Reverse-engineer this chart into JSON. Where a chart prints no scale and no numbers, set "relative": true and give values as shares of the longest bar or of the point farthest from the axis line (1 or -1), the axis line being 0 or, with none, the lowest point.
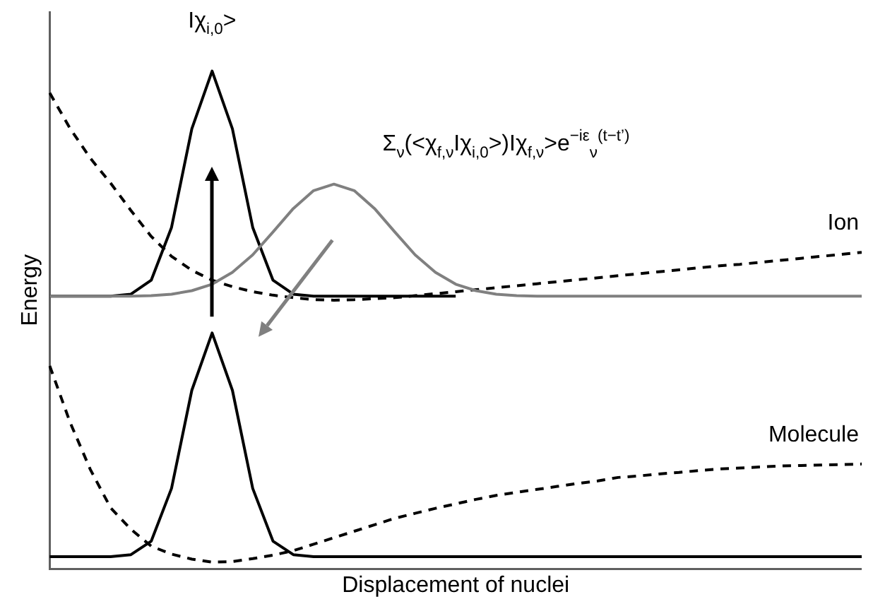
{
  "chart_data": {
    "type": "line",
    "relative": true,
    "xlabel": "Displacement of nuclei",
    "ylabel": "Energy",
    "legend": false,
    "marker": "none",
    "categories": [
      null,
      null,
      null,
      null,
      null,
      null,
      null,
      null,
      null,
      null,
      null,
      null,
      null,
      null,
      null,
      null,
      null,
      null,
      null,
      null,
      null,
      null,
      null,
      null,
      null,
      null,
      null,
      null,
      null,
      null,
      null,
      null,
      null,
      null,
      null,
      null,
      null,
      null,
      null,
      null,
      null
    ],
    "annotations": [
      "Iχ$_{i,0}$>",
      "Σ$_{ν}$(<χ$_{f,ν}$Iχ$_{i,0}$>)Iχ$_{f,ν}$>e$^{−iε}$$_{ν}$$^{(t−t’)}$"
    ],
    "series": [
      {
        "color": "#808080",
        "line_style": "solid",
        "values": [
          0.548,
          0.548,
          0.548,
          0.548,
          0.548,
          0.549,
          0.552,
          0.559,
          0.572,
          0.596,
          0.631,
          0.677,
          0.724,
          0.76,
          0.773,
          0.76,
          0.724,
          0.677,
          0.631,
          0.596,
          0.572,
          0.559,
          0.552,
          0.549,
          0.548,
          0.548,
          0.548,
          0.548,
          0.548,
          0.548,
          0.548,
          0.548,
          0.548,
          0.548,
          0.548,
          0.548,
          0.548,
          0.548,
          0.548,
          0.548,
          0.548
        ]
      },
      {
        "color": "#000000",
        "line_style": "solid",
        "values": [
          0.548,
          0.548,
          0.548,
          0.548,
          0.552,
          0.58,
          0.686,
          0.884,
          1.0,
          0.884,
          0.686,
          0.58,
          0.552,
          0.548,
          0.548,
          0.548,
          0.548,
          0.548,
          0.548,
          0.548,
          0.548,
          null,
          null,
          null,
          null,
          null,
          null,
          null,
          null,
          null,
          null,
          null,
          null,
          null,
          null,
          null,
          null,
          null,
          null,
          null,
          null
        ]
      },
      {
        "color": "#000000",
        "line_style": "solid",
        "values": [
          0.025,
          0.025,
          0.025,
          0.025,
          0.029,
          0.056,
          0.162,
          0.359,
          0.474,
          0.359,
          0.162,
          0.056,
          0.029,
          0.025,
          0.025,
          0.025,
          0.025,
          0.025,
          0.025,
          0.025,
          0.025,
          0.025,
          0.025,
          0.025,
          0.025,
          0.025,
          0.025,
          0.025,
          0.025,
          0.025,
          0.025,
          0.025,
          0.025,
          0.025,
          0.025,
          0.025,
          0.025,
          0.025,
          0.025,
          0.025,
          0.025
        ]
      },
      {
        "name": "Ion",
        "color": "#000000",
        "line_style": "dashed",
        "values": [
          0.956,
          0.885,
          0.825,
          0.775,
          0.72,
          0.668,
          0.628,
          0.6,
          0.58,
          0.567,
          0.557,
          0.55,
          0.545,
          0.541,
          0.54,
          0.541,
          0.543,
          0.545,
          0.549,
          0.553,
          0.557,
          0.561,
          0.565,
          0.569,
          0.573,
          0.577,
          0.581,
          0.585,
          0.589,
          0.593,
          0.597,
          0.601,
          0.605,
          0.609,
          0.612,
          0.616,
          0.62,
          0.624,
          0.628,
          0.632,
          0.636
        ]
      },
      {
        "name": "Molecule",
        "color": "#000000",
        "line_style": "dashed",
        "values": [
          0.408,
          0.295,
          0.2,
          0.123,
          0.08,
          0.046,
          0.03,
          0.02,
          0.014,
          0.015,
          0.021,
          0.028,
          0.037,
          0.05,
          0.063,
          0.076,
          0.089,
          0.102,
          0.112,
          0.122,
          0.131,
          0.14,
          0.148,
          0.154,
          0.16,
          0.166,
          0.172,
          0.177,
          0.184,
          0.187,
          0.191,
          0.194,
          0.198,
          0.201,
          0.203,
          0.205,
          0.207,
          0.208,
          0.209,
          0.21,
          0.211
        ]
      }
    ]
  }
}
